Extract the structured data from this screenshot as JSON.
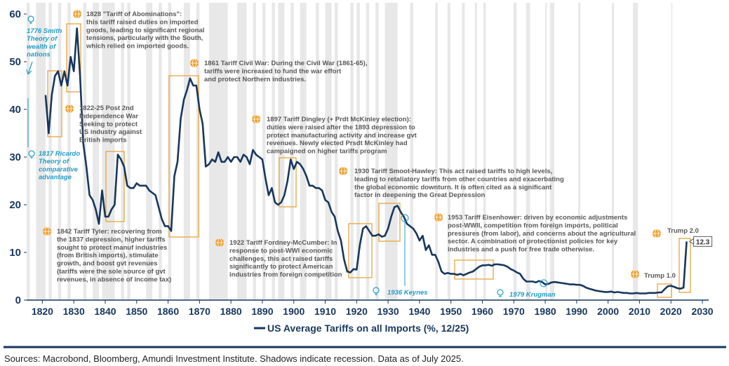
{
  "chart_data": {
    "type": "line",
    "series": [
      {
        "name": "US Average Tariffs on all Imports (%, 12/25)",
        "color": "#17375e",
        "x": [
          1821,
          1822,
          1823,
          1824,
          1825,
          1826,
          1827,
          1828,
          1829,
          1830,
          1831,
          1832,
          1833,
          1834,
          1835,
          1836,
          1837,
          1838,
          1839,
          1840,
          1841,
          1842,
          1843,
          1844,
          1845,
          1846,
          1847,
          1848,
          1849,
          1850,
          1851,
          1852,
          1853,
          1854,
          1855,
          1856,
          1857,
          1858,
          1859,
          1860,
          1861,
          1862,
          1863,
          1864,
          1865,
          1866,
          1867,
          1868,
          1869,
          1870,
          1871,
          1872,
          1873,
          1874,
          1875,
          1876,
          1877,
          1878,
          1879,
          1880,
          1881,
          1882,
          1883,
          1884,
          1885,
          1886,
          1887,
          1888,
          1889,
          1890,
          1891,
          1892,
          1893,
          1894,
          1895,
          1896,
          1897,
          1898,
          1899,
          1900,
          1901,
          1902,
          1903,
          1904,
          1905,
          1906,
          1907,
          1908,
          1909,
          1910,
          1911,
          1912,
          1913,
          1914,
          1915,
          1916,
          1917,
          1918,
          1919,
          1920,
          1921,
          1922,
          1923,
          1924,
          1925,
          1926,
          1927,
          1928,
          1929,
          1930,
          1931,
          1932,
          1933,
          1934,
          1935,
          1936,
          1937,
          1938,
          1939,
          1940,
          1941,
          1942,
          1943,
          1944,
          1945,
          1946,
          1947,
          1948,
          1949,
          1950,
          1951,
          1952,
          1953,
          1954,
          1955,
          1956,
          1957,
          1958,
          1959,
          1960,
          1961,
          1962,
          1963,
          1964,
          1965,
          1966,
          1967,
          1968,
          1969,
          1970,
          1971,
          1972,
          1973,
          1974,
          1975,
          1976,
          1977,
          1978,
          1979,
          1980,
          1981,
          1982,
          1983,
          1984,
          1985,
          1986,
          1987,
          1988,
          1989,
          1990,
          1991,
          1992,
          1993,
          1994,
          1995,
          1996,
          1997,
          1998,
          1999,
          2000,
          2001,
          2002,
          2003,
          2004,
          2005,
          2006,
          2007,
          2008,
          2009,
          2010,
          2011,
          2012,
          2013,
          2014,
          2015,
          2016,
          2017,
          2018,
          2019,
          2020,
          2021,
          2022,
          2023,
          2024,
          2025
        ],
        "values": [
          43,
          35,
          43,
          47,
          48,
          45,
          48,
          45,
          51,
          48,
          57,
          47,
          33,
          28,
          22,
          21,
          19,
          16,
          23,
          17.5,
          17.5,
          19,
          20,
          30.5,
          29.5,
          28,
          24,
          23.5,
          23.5,
          24.5,
          24,
          24,
          24,
          23,
          22.5,
          22,
          19.5,
          17,
          15.5,
          15.5,
          14.5,
          26,
          29,
          38,
          42,
          44,
          46.5,
          45,
          45,
          40,
          37,
          28,
          28.5,
          29.5,
          29,
          31,
          29,
          29,
          30,
          29,
          30,
          30,
          29,
          30.5,
          30,
          28.5,
          31.5,
          30.5,
          30,
          29.5,
          25.5,
          22,
          23.5,
          20.5,
          20,
          20.5,
          22,
          25,
          29.5,
          27.5,
          29,
          28.5,
          27.5,
          26,
          24,
          24,
          23.5,
          23.5,
          23,
          21,
          20.5,
          18.5,
          17.5,
          14.5,
          12.5,
          8.5,
          6,
          5.8,
          6.5,
          6.4,
          11.5,
          15,
          15.5,
          14.5,
          13.5,
          13.5,
          13.8,
          13.3,
          13.5,
          15,
          17.5,
          19.5,
          19.8,
          18.5,
          17.5,
          16,
          15.5,
          15,
          14,
          12.5,
          13.5,
          10.5,
          11.5,
          9.5,
          9.5,
          8,
          6,
          5.5,
          5.7,
          5.5,
          5.5,
          5.3,
          5.5,
          5.2,
          5.5,
          5.8,
          6,
          6.5,
          7,
          7.3,
          7.3,
          7.4,
          7.2,
          7.5,
          7.5,
          7.4,
          7.3,
          7,
          6.5,
          6.2,
          5.8,
          5.5,
          4.5,
          3.9,
          3.9,
          3.9,
          3.7,
          4,
          3.8,
          3.3,
          3.4,
          3.7,
          3.8,
          3.7,
          3.6,
          3.5,
          3.4,
          3.3,
          3.3,
          3.2,
          3.2,
          3,
          2.6,
          2.4,
          2.2,
          2,
          1.9,
          1.8,
          1.7,
          1.7,
          1.8,
          1.6,
          1.7,
          1.6,
          1.5,
          1.5,
          1.4,
          1.4,
          1.5,
          1.4,
          1.4,
          1.4,
          1.5,
          1.5,
          1.5,
          1.6,
          1.6,
          2.3,
          2.9,
          3,
          2.8,
          2.5,
          2.4,
          2.6,
          12.3
        ]
      }
    ],
    "xlim": [
      1815,
      2032
    ],
    "ylim": [
      0,
      60
    ],
    "xticks": [
      1820,
      1830,
      1840,
      1850,
      1860,
      1870,
      1880,
      1890,
      1900,
      1910,
      1920,
      1930,
      1940,
      1950,
      1960,
      1970,
      1980,
      1990,
      2000,
      2010,
      2020,
      2030
    ],
    "yticks": [
      0,
      10,
      20,
      30,
      40,
      50,
      60
    ],
    "recession_color": "#e8e8e8",
    "recession_periods": [
      [
        1815,
        1816
      ],
      [
        1818,
        1821
      ],
      [
        1822,
        1823
      ],
      [
        1825,
        1826
      ],
      [
        1828,
        1829
      ],
      [
        1833,
        1834
      ],
      [
        1836,
        1838
      ],
      [
        1839,
        1843
      ],
      [
        1845,
        1846
      ],
      [
        1847,
        1848
      ],
      [
        1853,
        1855
      ],
      [
        1857,
        1858
      ],
      [
        1860,
        1861
      ],
      [
        1865,
        1867
      ],
      [
        1869,
        1870
      ],
      [
        1873,
        1879
      ],
      [
        1882,
        1885
      ],
      [
        1887,
        1888
      ],
      [
        1890,
        1891
      ],
      [
        1893,
        1894
      ],
      [
        1895,
        1897
      ],
      [
        1899,
        1900
      ],
      [
        1902,
        1904
      ],
      [
        1907,
        1908
      ],
      [
        1910,
        1912
      ],
      [
        1913,
        1914
      ],
      [
        1918,
        1919
      ],
      [
        1920,
        1921
      ],
      [
        1923,
        1924
      ],
      [
        1926,
        1927
      ],
      [
        1929,
        1933
      ],
      [
        1937,
        1938
      ],
      [
        1945,
        1945.8
      ],
      [
        1948.9,
        1949.8
      ],
      [
        1953.5,
        1954.4
      ],
      [
        1957.6,
        1958.3
      ],
      [
        1960.3,
        1961.1
      ],
      [
        1969.9,
        1970.9
      ],
      [
        1973.9,
        1975.2
      ],
      [
        1980,
        1980.5
      ],
      [
        1981.5,
        1982.9
      ],
      [
        1990.5,
        1991.2
      ],
      [
        2001.2,
        2001.9
      ],
      [
        2007.9,
        2009.5
      ],
      [
        2020.1,
        2020.4
      ]
    ],
    "annotations": [
      {
        "lines": [
          "1828 \"Tariff of Abominations\":",
          "this tariff raised duties on imported",
          "goods, leading to significant regional",
          "tensions, particularly with the South,",
          "which relied on imported goods."
        ]
      },
      {
        "lines": [
          "1861 Tariff Civil War: During the Civil War (1861-65),",
          "tariffs were increased to fund the war effort",
          "and protect Northern industries."
        ]
      },
      {
        "lines": [
          "1822-25 Post 2nd",
          "Independence War",
          "Seeking to protect",
          "US industry against",
          "British imports"
        ]
      },
      {
        "lines": [
          "1897 Tariff Dingley (+ Prdt McKinley election):",
          "duties were raised after the 1893 depression to",
          "protect manufacturing activity and increase gvt",
          "revenues. Newly elected Prsdt McKinley had",
          "campaigned on higher tariffs program"
        ]
      },
      {
        "lines": [
          "1930 Tariff Smoot-Hawley: This act raised tariffs to high levels,",
          "leading to retaliatory tariffs from other countries and exacerbating",
          "the global economic downturn. It is often cited as a significant",
          "factor in deepening the Great Depression"
        ]
      },
      {
        "lines": [
          "1842 Tariff Tyler: recovering from",
          "the 1837 depression, higher tariffs",
          "sought to protect manuf industries",
          "(from British imports), stimulate",
          "growth, and boost gvt revenues",
          "(tariffs were the sole source of gvt",
          "revenues, in absence of income tax)"
        ]
      },
      {
        "lines": [
          "1922 Tariff Fordney-McCumber: In",
          "response to post-WWI economic",
          "challenges, this act raised tariffs",
          "significantly to protect American",
          "industries from foreign competition"
        ]
      },
      {
        "lines": [
          "1953 Tariff Eisenhower: driven by economic adjustments",
          "post-WWII, competition from foreign imports, political",
          "pressures (from labor), and concerns about the agricultural",
          "sector. A combination of protectionist policies for key",
          "industries and a push for free trade otherwise."
        ]
      },
      {
        "lines": [
          "Trump 1.0"
        ]
      },
      {
        "lines": [
          "Trump 2.0"
        ]
      }
    ],
    "theory_notes": [
      {
        "lines": [
          "1776 Smith",
          "Theory of",
          "wealth of",
          "nations"
        ]
      },
      {
        "lines": [
          "1817 Ricardo",
          "Theory of",
          "comparative",
          "advantage"
        ]
      },
      {
        "lines": [
          "1936 Keynes"
        ]
      },
      {
        "lines": [
          "1979 Krugman"
        ]
      }
    ]
  },
  "footer": "Sources: Macrobond, Bloomberg, Amundi Investment Institute. Shadows indicate recession. Data as of July 2025."
}
